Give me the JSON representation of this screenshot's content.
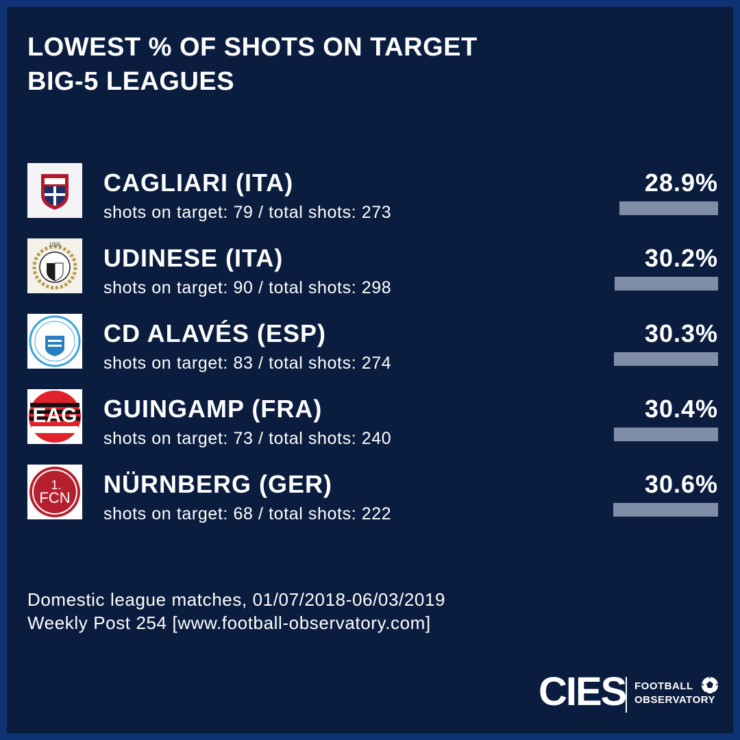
{
  "title": {
    "line1": "LOWEST % OF SHOTS ON TARGET",
    "line2": "BIG-5 LEAGUES"
  },
  "chart_data": {
    "type": "bar",
    "title": "LOWEST % OF SHOTS ON TARGET BIG-5 LEAGUES",
    "categories": [
      "CAGLIARI (ITA)",
      "UDINESE (ITA)",
      "CD ALAVÉS (ESP)",
      "GUINGAMP (FRA)",
      "NÜRNBERG (GER)"
    ],
    "values": [
      28.9,
      30.2,
      30.3,
      30.4,
      30.6
    ],
    "value_labels": [
      "28.9%",
      "30.2%",
      "30.3%",
      "30.4%",
      "30.6%"
    ],
    "details": [
      "shots on target: 79 / total shots: 273",
      "shots on target: 90 / total shots: 298",
      "shots on target: 83 / total shots: 274",
      "shots on target: 73 / total shots: 240",
      "shots on target: 68 / total shots: 222"
    ],
    "bar_color": "#7f8ea6"
  },
  "teams": [
    {
      "name": "CAGLIARI (ITA)",
      "detail": "shots on target: 79 / total shots: 273",
      "pct": "28.9%",
      "logo": "cagliari-logo"
    },
    {
      "name": "UDINESE (ITA)",
      "detail": "shots on target: 90 / total shots: 298",
      "pct": "30.2%",
      "logo": "udinese-logo"
    },
    {
      "name": "CD ALAVÉS (ESP)",
      "detail": "shots on target: 83 / total shots: 274",
      "pct": "30.3%",
      "logo": "alaves-logo"
    },
    {
      "name": "GUINGAMP (FRA)",
      "detail": "shots on target: 73 / total shots: 240",
      "pct": "30.4%",
      "logo": "guingamp-logo"
    },
    {
      "name": "NÜRNBERG (GER)",
      "detail": "shots on target: 68 / total shots: 222",
      "pct": "30.6%",
      "logo": "nurnberg-logo"
    }
  ],
  "footer": {
    "line1": "Domestic league matches, 01/07/2018-06/03/2019",
    "line2": "Weekly Post 254 [www.football-observatory.com]"
  },
  "brand": {
    "cies": "CIES",
    "line1": "FOOTBALL",
    "line2": "OBSERVATORY"
  },
  "logo_text": {
    "udinese_year": "1896",
    "guingamp": "EAG",
    "nurnberg_top": "1.",
    "nurnberg_bottom": "FCN"
  },
  "colors": {
    "background": "#0b1d3f",
    "border": "#0f3275",
    "text": "#ffffff",
    "bar": "#7f8ea6"
  }
}
